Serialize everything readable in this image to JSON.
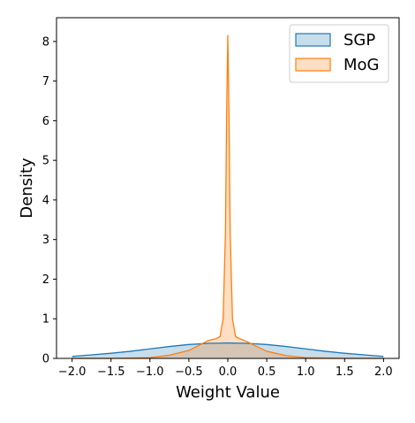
{
  "chart_data": {
    "type": "area",
    "title": "",
    "xlabel": "Weight Value",
    "ylabel": "Density",
    "xlim": [
      -2.2,
      2.2
    ],
    "ylim": [
      0,
      8.6
    ],
    "xticks": [
      -2.0,
      -1.5,
      -1.0,
      -0.5,
      0.0,
      0.5,
      1.0,
      1.5,
      2.0
    ],
    "xtick_labels": [
      "−2.0",
      "−1.5",
      "−1.0",
      "−0.5",
      "0.0",
      "0.5",
      "1.0",
      "1.5",
      "2.0"
    ],
    "yticks": [
      0,
      1,
      2,
      3,
      4,
      5,
      6,
      7,
      8
    ],
    "ytick_labels": [
      "0",
      "1",
      "2",
      "3",
      "4",
      "5",
      "6",
      "7",
      "8"
    ],
    "grid": false,
    "legend_position": "top-right",
    "series": [
      {
        "name": "SGP",
        "line_color": "#1f77b4",
        "fill_color": "#1f77b4",
        "x": [
          -2.0,
          -1.75,
          -1.5,
          -1.25,
          -1.0,
          -0.75,
          -0.5,
          -0.25,
          0.0,
          0.25,
          0.5,
          0.75,
          1.0,
          1.25,
          1.5,
          1.75,
          2.0
        ],
        "y": [
          0.05,
          0.09,
          0.13,
          0.18,
          0.24,
          0.3,
          0.35,
          0.38,
          0.39,
          0.38,
          0.35,
          0.3,
          0.24,
          0.18,
          0.13,
          0.09,
          0.05
        ]
      },
      {
        "name": "MoG",
        "line_color": "#ff7f0e",
        "fill_color": "#ff7f0e",
        "x": [
          -2.0,
          -1.5,
          -1.0,
          -0.75,
          -0.5,
          -0.35,
          -0.25,
          -0.15,
          -0.1,
          -0.06,
          -0.03,
          -0.015,
          0.0,
          0.015,
          0.03,
          0.06,
          0.1,
          0.15,
          0.25,
          0.35,
          0.5,
          0.75,
          1.0,
          1.5,
          2.0
        ],
        "y": [
          0.0,
          0.0,
          0.02,
          0.08,
          0.2,
          0.35,
          0.45,
          0.5,
          0.55,
          1.0,
          3.2,
          6.2,
          8.15,
          6.2,
          3.2,
          1.0,
          0.55,
          0.5,
          0.42,
          0.32,
          0.18,
          0.07,
          0.02,
          0.0,
          0.0
        ]
      }
    ]
  }
}
